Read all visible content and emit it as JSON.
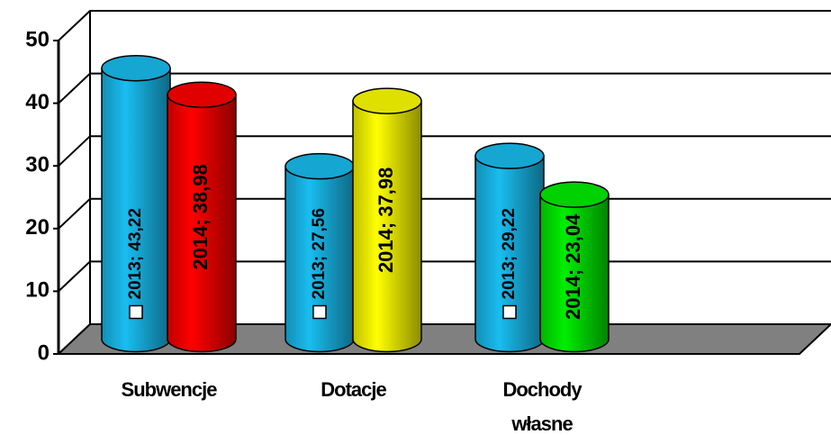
{
  "chart_data": {
    "type": "bar",
    "categories": [
      "Subwencje",
      "Dotacje",
      "Dochody własne"
    ],
    "series": [
      {
        "name": "2013",
        "color": "#19bdf0",
        "values": [
          43.22,
          27.56,
          29.22
        ],
        "value_labels": [
          "2013; 43,22",
          "2013; 27,56",
          "2013; 29,22"
        ]
      },
      {
        "name": "2014",
        "colors": [
          "#ff0000",
          "#ffff00",
          "#00ee00"
        ],
        "values": [
          38.98,
          37.98,
          23.04
        ],
        "value_labels": [
          "2014; 38,98",
          "2014; 37,98",
          "2014; 23,04"
        ]
      }
    ],
    "ylim": [
      0,
      50
    ],
    "yticks": [
      0,
      10,
      20,
      30,
      40,
      50
    ],
    "grid": true
  }
}
